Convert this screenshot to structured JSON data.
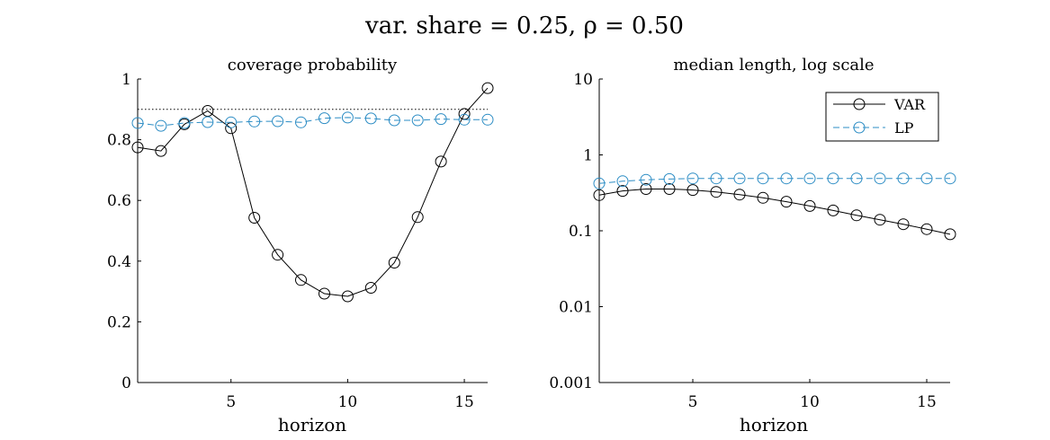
{
  "figure": {
    "title": "var. share = 0.25, ρ = 0.50"
  },
  "chart_data": [
    {
      "type": "line",
      "title": "coverage probability",
      "xlabel": "horizon",
      "ylabel": "",
      "xlim": [
        1,
        16
      ],
      "ylim": [
        0,
        1
      ],
      "xticks": [
        5,
        10,
        15
      ],
      "yticks": [
        0,
        0.2,
        0.4,
        0.6,
        0.8,
        1
      ],
      "ytick_labels": [
        "0",
        "0.2",
        "0.4",
        "0.6",
        "0.8",
        "1"
      ],
      "yscale": "linear",
      "reference_line": {
        "y": 0.9,
        "style": "dotted",
        "color": "#000000"
      },
      "x": [
        1,
        2,
        3,
        4,
        5,
        6,
        7,
        8,
        9,
        10,
        11,
        12,
        13,
        14,
        15,
        16
      ],
      "series": [
        {
          "name": "VAR",
          "color": "#000000",
          "linestyle": "solid",
          "marker": "circle",
          "values": [
            0.775,
            0.763,
            0.851,
            0.895,
            0.838,
            0.543,
            0.421,
            0.338,
            0.293,
            0.284,
            0.312,
            0.395,
            0.545,
            0.728,
            0.885,
            0.97
          ]
        },
        {
          "name": "LP",
          "color": "#2b8cc4",
          "linestyle": "dashed",
          "marker": "circle",
          "values": [
            0.855,
            0.846,
            0.855,
            0.858,
            0.857,
            0.86,
            0.861,
            0.857,
            0.871,
            0.873,
            0.87,
            0.864,
            0.864,
            0.868,
            0.866,
            0.866
          ]
        }
      ],
      "grid": false,
      "legend": "none"
    },
    {
      "type": "line",
      "title": "median length, log scale",
      "xlabel": "horizon",
      "ylabel": "",
      "xlim": [
        1,
        16
      ],
      "ylim": [
        0.001,
        10
      ],
      "xticks": [
        5,
        10,
        15
      ],
      "yticks": [
        0.001,
        0.01,
        0.1,
        1,
        10
      ],
      "ytick_labels": [
        "0.001",
        "0.01",
        "0.1",
        "1",
        "10"
      ],
      "yscale": "log",
      "x": [
        1,
        2,
        3,
        4,
        5,
        6,
        7,
        8,
        9,
        10,
        11,
        12,
        13,
        14,
        15,
        16
      ],
      "series": [
        {
          "name": "VAR",
          "color": "#000000",
          "linestyle": "solid",
          "marker": "circle",
          "values": [
            0.295,
            0.335,
            0.355,
            0.355,
            0.345,
            0.325,
            0.3,
            0.272,
            0.242,
            0.212,
            0.185,
            0.16,
            0.14,
            0.122,
            0.105,
            0.09
          ]
        },
        {
          "name": "LP",
          "color": "#2b8cc4",
          "linestyle": "dashed",
          "marker": "circle",
          "values": [
            0.42,
            0.45,
            0.47,
            0.48,
            0.49,
            0.49,
            0.49,
            0.49,
            0.49,
            0.49,
            0.49,
            0.49,
            0.49,
            0.49,
            0.49,
            0.49
          ]
        }
      ],
      "grid": false,
      "legend": "top-right"
    }
  ]
}
